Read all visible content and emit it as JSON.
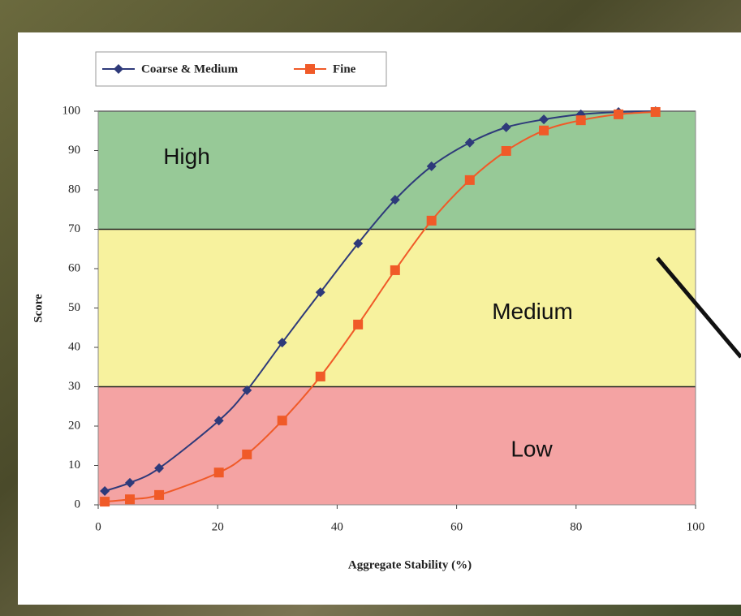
{
  "chart_data": {
    "type": "line",
    "x_label": "Aggregate Stability (%)",
    "y_label": "Score",
    "x": [
      1.1,
      5.3,
      10.2,
      20.2,
      24.9,
      30.8,
      37.2,
      43.5,
      49.7,
      55.8,
      62.2,
      68.3,
      74.6,
      80.8,
      87.1,
      93.3
    ],
    "series": [
      {
        "name": "Coarse & Medium",
        "color": "#2e3a7a",
        "marker": "diamond",
        "values": [
          3.5,
          5.6,
          9.3,
          21.4,
          29.1,
          41.2,
          54,
          66.4,
          77.5,
          86,
          92,
          95.9,
          97.9,
          99.2,
          99.8,
          100
        ]
      },
      {
        "name": "Fine",
        "color": "#f05a28",
        "marker": "square",
        "values": [
          0.8,
          1.4,
          2.5,
          8.2,
          12.8,
          21.4,
          32.6,
          45.8,
          59.6,
          72.2,
          82.5,
          89.9,
          95.1,
          97.7,
          99.2,
          99.8
        ]
      }
    ],
    "bands": [
      {
        "label": "High",
        "from": 70,
        "to": 100,
        "color": "#97c997"
      },
      {
        "label": "Medium",
        "from": 30,
        "to": 70,
        "color": "#f7f29e"
      },
      {
        "label": "Low",
        "from": 0,
        "to": 30,
        "color": "#f4a3a3"
      }
    ],
    "xlim": [
      0,
      100
    ],
    "xticks": [
      0,
      20,
      40,
      60,
      80,
      100
    ],
    "ylim": [
      0,
      100
    ],
    "yticks": [
      0,
      10,
      20,
      30,
      40,
      50,
      60,
      70,
      80,
      90,
      100
    ],
    "legend": "top-left"
  }
}
